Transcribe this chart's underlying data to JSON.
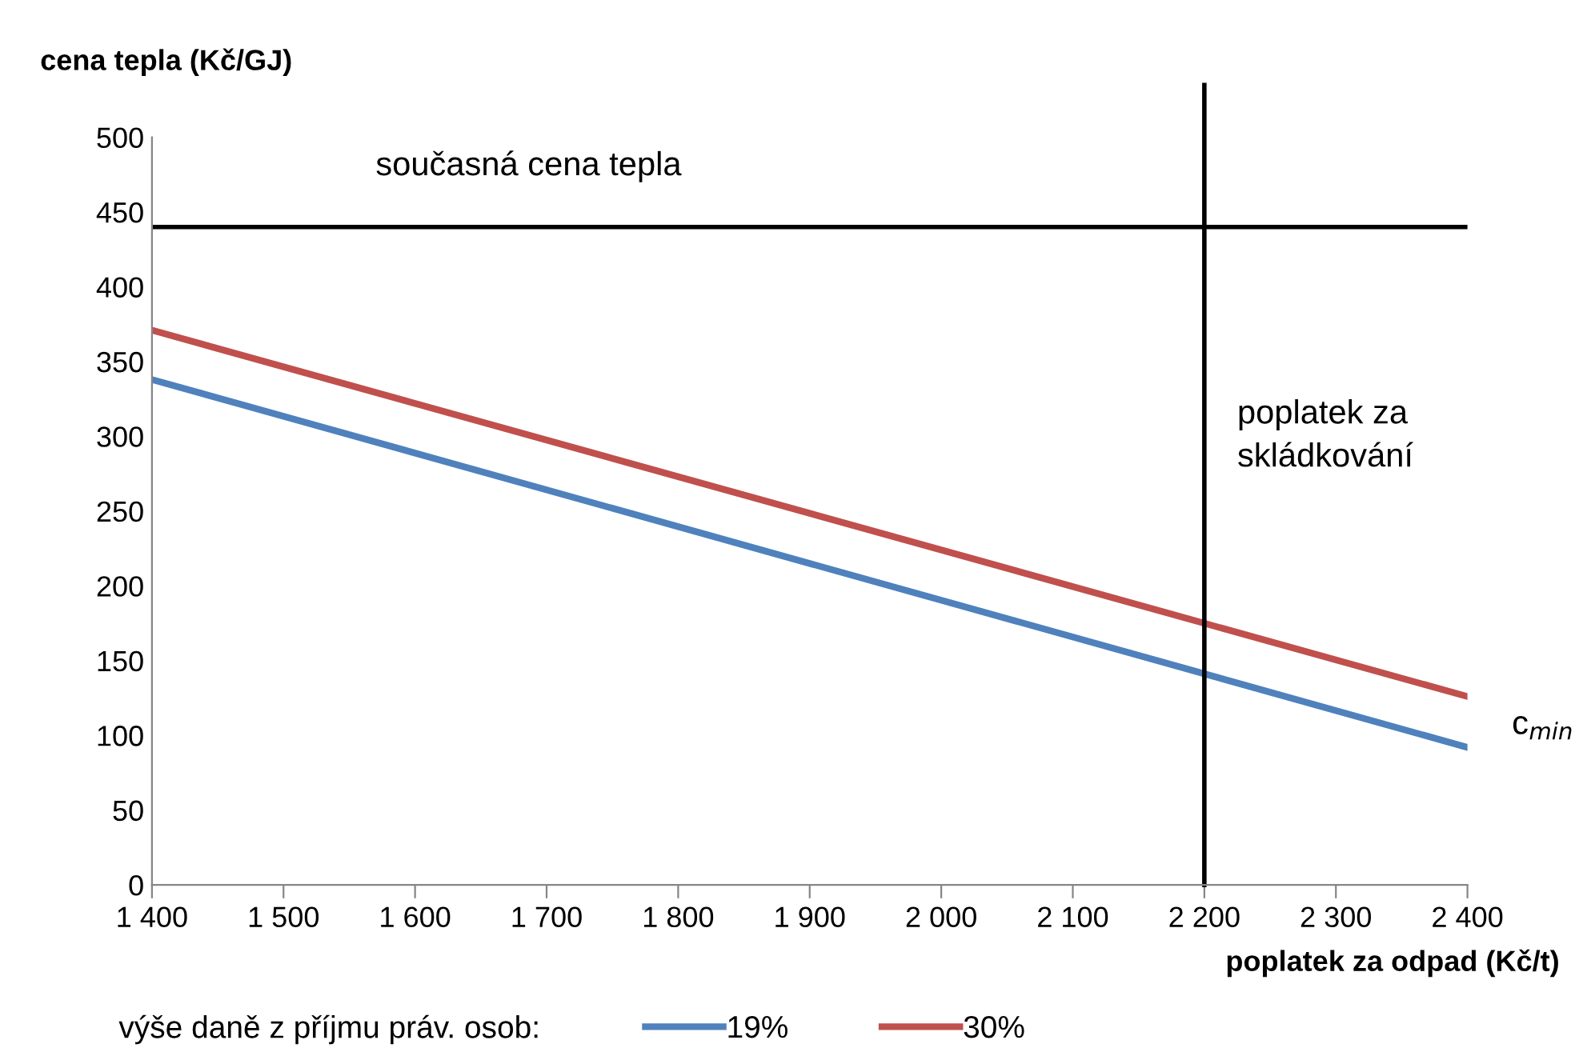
{
  "chart_data": {
    "type": "line",
    "xlabel": "poplatek za odpad (Kč/t)",
    "ylabel": "cena tepla (Kč/GJ)",
    "legend_title": "výše daně z příjmu práv. osob:",
    "legend": "bottom",
    "grid": false,
    "x": [
      1400,
      2400
    ],
    "series": [
      {
        "name": "19%",
        "color": "#4f81bd",
        "values": [
          338,
          92
        ]
      },
      {
        "name": "30%",
        "color": "#c0504d",
        "values": [
          371,
          126
        ]
      }
    ],
    "xlim": [
      1400,
      2400
    ],
    "xticks": [
      {
        "value": 1400,
        "label": "1 400"
      },
      {
        "value": 1500,
        "label": "1 500"
      },
      {
        "value": 1600,
        "label": "1 600"
      },
      {
        "value": 1700,
        "label": "1 700"
      },
      {
        "value": 1800,
        "label": "1 800"
      },
      {
        "value": 1900,
        "label": "1 900"
      },
      {
        "value": 2000,
        "label": "2 000"
      },
      {
        "value": 2100,
        "label": "2 100"
      },
      {
        "value": 2200,
        "label": "2 200"
      },
      {
        "value": 2300,
        "label": "2 300"
      },
      {
        "value": 2400,
        "label": "2 400"
      }
    ],
    "ylim": [
      0,
      500
    ],
    "yticks": [
      0,
      50,
      100,
      150,
      200,
      250,
      300,
      350,
      400,
      450,
      500
    ],
    "ref_lines": [
      {
        "axis": "y",
        "value": 440,
        "label": "současná cena tepla",
        "color": "#000000"
      },
      {
        "axis": "x",
        "value": 2200,
        "label": "poplatek za\nskládkování",
        "color": "#000000"
      }
    ],
    "annotations": [
      {
        "text": "c$_{min}$",
        "x": 2400,
        "y": 92
      }
    ]
  }
}
